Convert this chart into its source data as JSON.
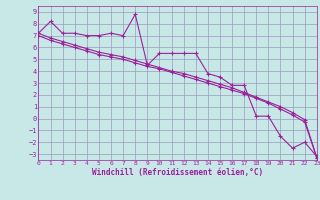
{
  "xlabel": "Windchill (Refroidissement éolien,°C)",
  "xlim": [
    0,
    23
  ],
  "ylim": [
    -3.5,
    9.5
  ],
  "yticks": [
    9,
    8,
    7,
    6,
    5,
    4,
    3,
    2,
    1,
    0,
    -1,
    -2,
    -3
  ],
  "xticks": [
    0,
    1,
    2,
    3,
    4,
    5,
    6,
    7,
    8,
    9,
    10,
    11,
    12,
    13,
    14,
    15,
    16,
    17,
    18,
    19,
    20,
    21,
    22,
    23
  ],
  "background_color": "#c8e8e8",
  "grid_color": "#9999bb",
  "line_color": "#992299",
  "series1_x": [
    0,
    1,
    2,
    3,
    4,
    5,
    6,
    7,
    8,
    9,
    10,
    11,
    12,
    13,
    14,
    15,
    16,
    17,
    18,
    19,
    20,
    21,
    22,
    23
  ],
  "series1_y": [
    7.2,
    8.2,
    7.2,
    7.2,
    7.0,
    7.0,
    7.2,
    7.0,
    8.8,
    4.5,
    5.5,
    5.5,
    5.5,
    5.5,
    3.8,
    3.5,
    2.8,
    2.8,
    0.2,
    0.2,
    -1.5,
    -2.5,
    -2.0,
    -3.2
  ],
  "series2_x": [
    0,
    1,
    2,
    3,
    4,
    5,
    6,
    7,
    8,
    9,
    10,
    11,
    12,
    13,
    14,
    15,
    16,
    17,
    18,
    19,
    20,
    21,
    22,
    23
  ],
  "series2_y": [
    7.0,
    6.6,
    6.3,
    6.0,
    5.7,
    5.4,
    5.2,
    5.0,
    4.7,
    4.4,
    4.2,
    3.9,
    3.6,
    3.3,
    3.0,
    2.7,
    2.4,
    2.1,
    1.7,
    1.3,
    0.8,
    0.3,
    -0.3,
    -3.3
  ],
  "series3_x": [
    0,
    1,
    2,
    3,
    4,
    5,
    6,
    7,
    8,
    9,
    10,
    11,
    12,
    13,
    14,
    15,
    16,
    17,
    18,
    19,
    20,
    21,
    22,
    23
  ],
  "series3_y": [
    7.2,
    6.8,
    6.5,
    6.2,
    5.9,
    5.6,
    5.4,
    5.2,
    4.9,
    4.6,
    4.3,
    4.0,
    3.8,
    3.5,
    3.2,
    2.9,
    2.6,
    2.2,
    1.8,
    1.4,
    1.0,
    0.5,
    -0.1,
    -3.3
  ]
}
